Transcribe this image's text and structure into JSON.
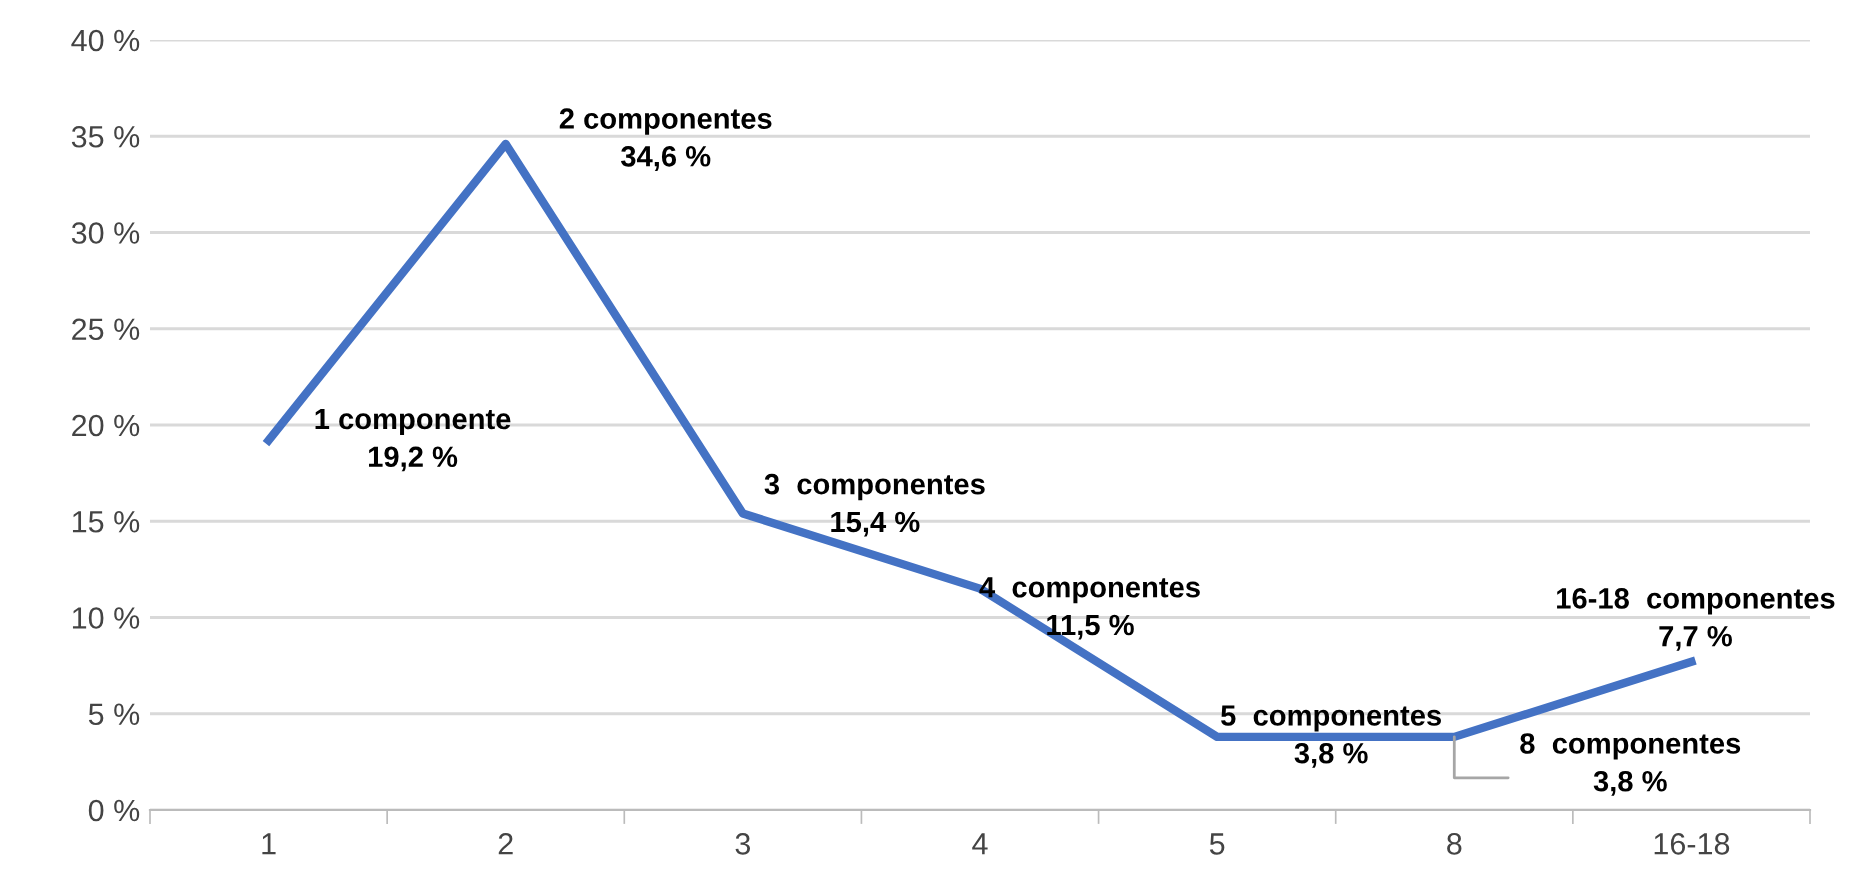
{
  "chart_data": {
    "type": "line",
    "categories": [
      "1",
      "2",
      "3",
      "4",
      "5",
      "8",
      "16-18"
    ],
    "series": [
      {
        "color": "#4472c4",
        "values": [
          19.2,
          34.6,
          15.4,
          11.5,
          3.8,
          3.8,
          7.7
        ],
        "value_labels": [
          "1 componente\n19,2 %",
          "2 componentes\n34,6 %",
          "3  componentes\n15,4 %",
          "4  componentes\n11,5 %",
          "5  componentes\n3,8 %",
          "8  componentes\n3,8 %",
          "16-18  componentes\n7,7 %"
        ]
      }
    ],
    "ylim": [
      0,
      40
    ],
    "yticks": [
      {
        "value": 0,
        "label": "0 %"
      },
      {
        "value": 5,
        "label": "5 %"
      },
      {
        "value": 10,
        "label": "10 %"
      },
      {
        "value": 15,
        "label": "15 %"
      },
      {
        "value": 20,
        "label": "20 %"
      },
      {
        "value": 25,
        "label": "25 %"
      },
      {
        "value": 30,
        "label": "30 %"
      },
      {
        "value": 35,
        "label": "35 %"
      },
      {
        "value": 40,
        "label": "40 %"
      }
    ],
    "grid": "y",
    "marker": "none",
    "line_style": "solid",
    "legend": false
  }
}
